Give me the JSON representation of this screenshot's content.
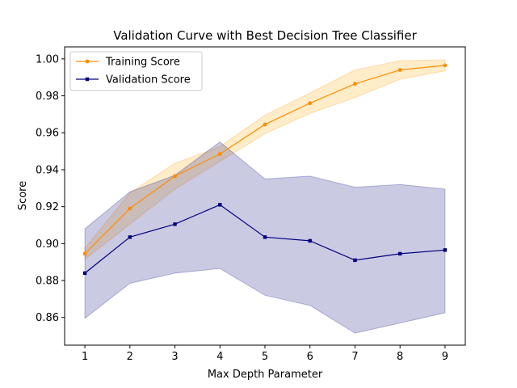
{
  "chart_data": {
    "type": "line",
    "title": "Validation Curve with Best Decision Tree Classifier",
    "xlabel": "Max Depth Parameter",
    "ylabel": "Score",
    "x": [
      1,
      2,
      3,
      4,
      5,
      6,
      7,
      8,
      9
    ],
    "xlim": [
      0.55,
      9.45
    ],
    "ylim": [
      0.845,
      1.0065
    ],
    "xticks": [
      "1",
      "2",
      "3",
      "4",
      "5",
      "6",
      "7",
      "8",
      "9"
    ],
    "yticks": [
      "0.86",
      "0.88",
      "0.90",
      "0.92",
      "0.94",
      "0.96",
      "0.98",
      "1.00"
    ],
    "ytick_values": [
      0.86,
      0.88,
      0.9,
      0.92,
      0.94,
      0.96,
      0.98,
      1.0
    ],
    "grid": false,
    "legend_position": "upper-left",
    "series": [
      {
        "name": "Training Score",
        "color": "#ff8c00",
        "marker": "circle",
        "values": [
          0.8945,
          0.919,
          0.9365,
          0.9485,
          0.9645,
          0.976,
          0.9865,
          0.994,
          0.9965
        ],
        "band_upper": [
          0.8975,
          0.9275,
          0.9435,
          0.9525,
          0.9695,
          0.9815,
          0.994,
          0.999,
          0.9995
        ],
        "band_lower": [
          0.8915,
          0.9105,
          0.9295,
          0.9445,
          0.9595,
          0.9705,
          0.979,
          0.989,
          0.9935
        ]
      },
      {
        "name": "Validation Score",
        "color": "#000080",
        "marker": "square",
        "values": [
          0.884,
          0.9035,
          0.9105,
          0.921,
          0.9035,
          0.9015,
          0.891,
          0.8945,
          0.8965
        ],
        "band_upper": [
          0.908,
          0.928,
          0.937,
          0.955,
          0.935,
          0.9365,
          0.9305,
          0.932,
          0.9295
        ],
        "band_lower": [
          0.8595,
          0.8785,
          0.884,
          0.8865,
          0.872,
          0.8665,
          0.8515,
          0.857,
          0.8625
        ]
      }
    ]
  }
}
